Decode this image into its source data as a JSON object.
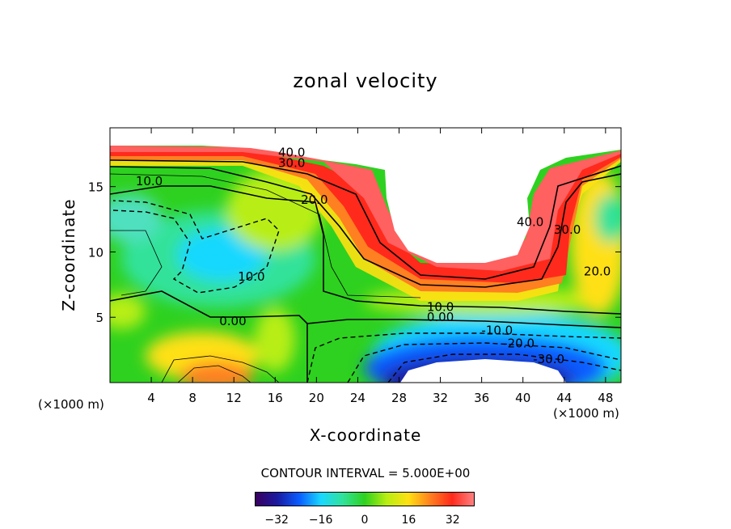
{
  "chart_data": {
    "type": "heatmap",
    "title": "zonal velocity",
    "xlabel": "X-coordinate",
    "ylabel": "Z-coordinate",
    "x_unit_label": "(×1000 m)",
    "x_ticks": [
      4,
      8,
      12,
      16,
      20,
      24,
      28,
      32,
      36,
      40,
      44,
      48
    ],
    "y_ticks": [
      5,
      10,
      15
    ],
    "xlim": [
      0,
      49.5
    ],
    "ylim": [
      0,
      19.5
    ],
    "contour_interval_text": "CONTOUR INTERVAL = 5.000E+00",
    "colorbar": {
      "range": [
        -40,
        40
      ],
      "ticks": [
        -32,
        -16,
        0,
        16,
        32
      ],
      "colors": [
        "#3a0060",
        "#1a1aa0",
        "#0a5cff",
        "#19d8ff",
        "#30e29a",
        "#2ed11f",
        "#b8ee12",
        "#ffe012",
        "#ff8020",
        "#ff2a1c",
        "#ff8080"
      ]
    },
    "contour_labels": [
      {
        "text": "40.0",
        "x": 17.6,
        "z": 17.6
      },
      {
        "text": "30.0",
        "x": 17.6,
        "z": 16.8
      },
      {
        "text": "10.0",
        "x": 3.8,
        "z": 15.4
      },
      {
        "text": "20.0",
        "x": 19.8,
        "z": 14.0
      },
      {
        "text": "10.0",
        "x": 13.7,
        "z": 8.1
      },
      {
        "text": "0.00",
        "x": 11.9,
        "z": 4.7
      },
      {
        "text": "10.0",
        "x": 32.0,
        "z": 5.8
      },
      {
        "text": "0.00",
        "x": 32.0,
        "z": 5.0
      },
      {
        "text": "-10.0",
        "x": 37.5,
        "z": 4.0
      },
      {
        "text": "-20.0",
        "x": 39.6,
        "z": 3.0
      },
      {
        "text": "-30.0",
        "x": 42.5,
        "z": 1.8
      },
      {
        "text": "40.0",
        "x": 40.7,
        "z": 12.3
      },
      {
        "text": "30.0",
        "x": 44.3,
        "z": 11.7
      },
      {
        "text": "20.0",
        "x": 47.2,
        "z": 8.5
      }
    ]
  }
}
